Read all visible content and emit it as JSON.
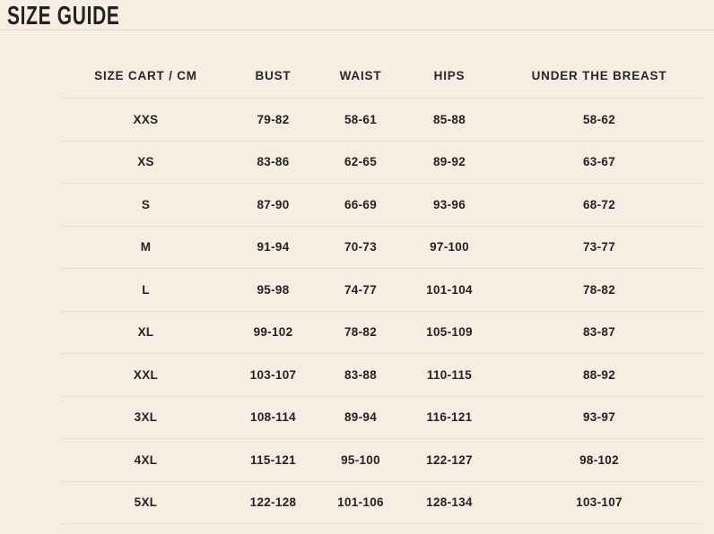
{
  "page": {
    "title": "SIZE GUIDE"
  },
  "colors": {
    "background": "#f6ede3",
    "divider": "#e7ddd1",
    "title_divider": "#ddd5cb",
    "text": "#24211e"
  },
  "table": {
    "columns": [
      "SIZE CART / CM",
      "BUST",
      "WAIST",
      "HIPS",
      "UNDER THE BREAST"
    ],
    "rows": [
      {
        "size": "XXS",
        "bust": "79-82",
        "waist": "58-61",
        "hips": "85-88",
        "under_breast": "58-62"
      },
      {
        "size": "XS",
        "bust": "83-86",
        "waist": "62-65",
        "hips": "89-92",
        "under_breast": "63-67"
      },
      {
        "size": "S",
        "bust": "87-90",
        "waist": "66-69",
        "hips": "93-96",
        "under_breast": "68-72"
      },
      {
        "size": "M",
        "bust": "91-94",
        "waist": "70-73",
        "hips": "97-100",
        "under_breast": "73-77"
      },
      {
        "size": "L",
        "bust": "95-98",
        "waist": "74-77",
        "hips": "101-104",
        "under_breast": "78-82"
      },
      {
        "size": "XL",
        "bust": "99-102",
        "waist": "78-82",
        "hips": "105-109",
        "under_breast": "83-87"
      },
      {
        "size": "XXL",
        "bust": "103-107",
        "waist": "83-88",
        "hips": "110-115",
        "under_breast": "88-92"
      },
      {
        "size": "3XL",
        "bust": "108-114",
        "waist": "89-94",
        "hips": "116-121",
        "under_breast": "93-97"
      },
      {
        "size": "4XL",
        "bust": "115-121",
        "waist": "95-100",
        "hips": "122-127",
        "under_breast": "98-102"
      },
      {
        "size": "5XL",
        "bust": "122-128",
        "waist": "101-106",
        "hips": "128-134",
        "under_breast": "103-107"
      }
    ]
  }
}
